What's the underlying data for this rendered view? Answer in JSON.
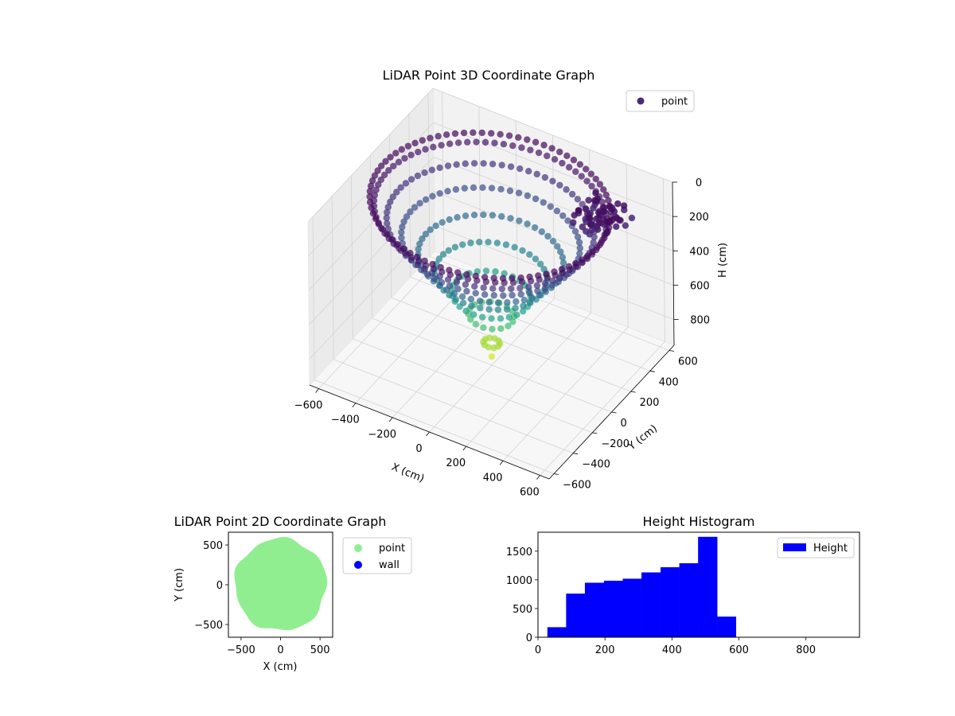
{
  "chart_data": [
    {
      "type": "scatter3d",
      "title": "LiDAR Point 3D Coordinate Graph",
      "xlabel": "X (cm)",
      "ylabel": "Y (cm)",
      "zlabel": "H (cm)",
      "xlim": [
        -650,
        650
      ],
      "ylim": [
        -650,
        650
      ],
      "zlim": [
        0,
        950
      ],
      "z_inverted": true,
      "xticks": [
        -600,
        -400,
        -200,
        0,
        200,
        400,
        600
      ],
      "yticks": [
        -600,
        -400,
        -200,
        0,
        200,
        400,
        600
      ],
      "zticks": [
        0,
        200,
        400,
        600,
        800
      ],
      "legend": [
        "point"
      ],
      "colormap": "viridis",
      "shape": "bowl",
      "bowl": {
        "rim_radius": 580,
        "rim_height": 20,
        "bottom_height": 900,
        "rings": [
          {
            "r": 560,
            "h": 60
          },
          {
            "r": 500,
            "h": 140
          },
          {
            "r": 430,
            "h": 230
          },
          {
            "r": 350,
            "h": 330
          },
          {
            "r": 270,
            "h": 430
          },
          {
            "r": 190,
            "h": 540
          },
          {
            "r": 110,
            "h": 660
          },
          {
            "r": 40,
            "h": 820
          }
        ]
      },
      "cluster": {
        "center": [
          450,
          300
        ],
        "height_range": [
          20,
          120
        ]
      }
    },
    {
      "type": "scatter",
      "title": "LiDAR Point 2D Coordinate Graph",
      "xlabel": "X (cm)",
      "ylabel": "Y (cm)",
      "xlim": [
        -660,
        660
      ],
      "ylim": [
        -660,
        660
      ],
      "xticks": [
        -500,
        0,
        500
      ],
      "yticks": [
        -500,
        0,
        500
      ],
      "series": [
        {
          "name": "point",
          "color": "#90ee90",
          "shape": "disk",
          "radius": 580
        },
        {
          "name": "wall",
          "color": "#0000ff"
        }
      ]
    },
    {
      "type": "histogram",
      "title": "Height Histogram",
      "xlabel": "",
      "ylabel": "",
      "xlim": [
        0,
        960
      ],
      "ylim": [
        0,
        1830
      ],
      "xticks": [
        0,
        200,
        400,
        600,
        800
      ],
      "yticks": [
        0,
        500,
        1000,
        1500
      ],
      "legend": [
        "Height"
      ],
      "bar_color": "#0000ff",
      "bins": [
        {
          "x0": 28,
          "x1": 84,
          "count": 175
        },
        {
          "x0": 84,
          "x1": 140,
          "count": 760
        },
        {
          "x0": 140,
          "x1": 197,
          "count": 950
        },
        {
          "x0": 197,
          "x1": 253,
          "count": 985
        },
        {
          "x0": 253,
          "x1": 309,
          "count": 1020
        },
        {
          "x0": 309,
          "x1": 366,
          "count": 1130
        },
        {
          "x0": 366,
          "x1": 422,
          "count": 1220
        },
        {
          "x0": 422,
          "x1": 478,
          "count": 1290
        },
        {
          "x0": 478,
          "x1": 535,
          "count": 1750
        },
        {
          "x0": 535,
          "x1": 591,
          "count": 360
        },
        {
          "x0": 591,
          "x1": 647,
          "count": 0
        },
        {
          "x0": 647,
          "x1": 703,
          "count": 0
        },
        {
          "x0": 703,
          "x1": 760,
          "count": 0
        },
        {
          "x0": 760,
          "x1": 816,
          "count": 0
        },
        {
          "x0": 816,
          "x1": 872,
          "count": 0
        },
        {
          "x0": 872,
          "x1": 928,
          "count": 0
        }
      ]
    }
  ]
}
